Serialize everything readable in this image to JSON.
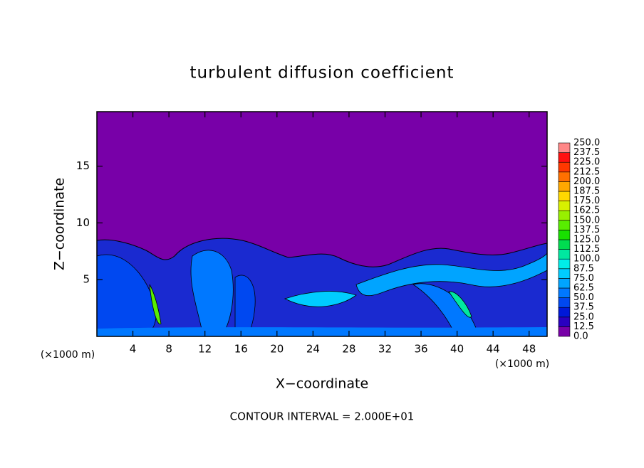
{
  "chart_data": {
    "type": "contour",
    "title": "turbulent diffusion coefficient",
    "xlabel": "X−coordinate",
    "ylabel": "Z−coordinate",
    "x_units": "(×1000 m)",
    "y_units": "(×1000 m)",
    "annotation": "CONTOUR INTERVAL = 2.000E+01",
    "xlim": [
      0,
      50
    ],
    "ylim": [
      0,
      19.8
    ],
    "xticks": [
      4,
      8,
      12,
      16,
      20,
      24,
      28,
      32,
      36,
      40,
      44,
      48
    ],
    "yticks": [
      5,
      10,
      15
    ],
    "colorbar": {
      "levels": [
        {
          "value": 0,
          "label": "0.0"
        },
        {
          "value": 12.5,
          "label": "12.5"
        },
        {
          "value": 25,
          "label": "25.0"
        },
        {
          "value": 37.5,
          "label": "37.5"
        },
        {
          "value": 50,
          "label": "50.0"
        },
        {
          "value": 62.5,
          "label": "62.5"
        },
        {
          "value": 75,
          "label": "75.0"
        },
        {
          "value": 87.5,
          "label": "87.5"
        },
        {
          "value": 100,
          "label": "100.0"
        },
        {
          "value": 112.5,
          "label": "112.5"
        },
        {
          "value": 125,
          "label": "125.0"
        },
        {
          "value": 137.5,
          "label": "137.5"
        },
        {
          "value": 150,
          "label": "150.0"
        },
        {
          "value": 162.5,
          "label": "162.5"
        },
        {
          "value": 175,
          "label": "175.0"
        },
        {
          "value": 187.5,
          "label": "187.5"
        },
        {
          "value": 200,
          "label": "200.0"
        },
        {
          "value": 212.5,
          "label": "212.5"
        },
        {
          "value": 225,
          "label": "225.0"
        },
        {
          "value": 237.5,
          "label": "237.5"
        },
        {
          "value": 250,
          "label": "250.0"
        }
      ],
      "colors": [
        "#7800a8",
        "#2a00c0",
        "#0018d8",
        "#0048f0",
        "#0078ff",
        "#00a4ff",
        "#00ccff",
        "#00eee8",
        "#00e8a0",
        "#00dc50",
        "#18e000",
        "#58ee00",
        "#98f000",
        "#d8f000",
        "#ffd800",
        "#ffa800",
        "#ff7000",
        "#ff3800",
        "#ff1010",
        "#ff8888"
      ]
    }
  }
}
